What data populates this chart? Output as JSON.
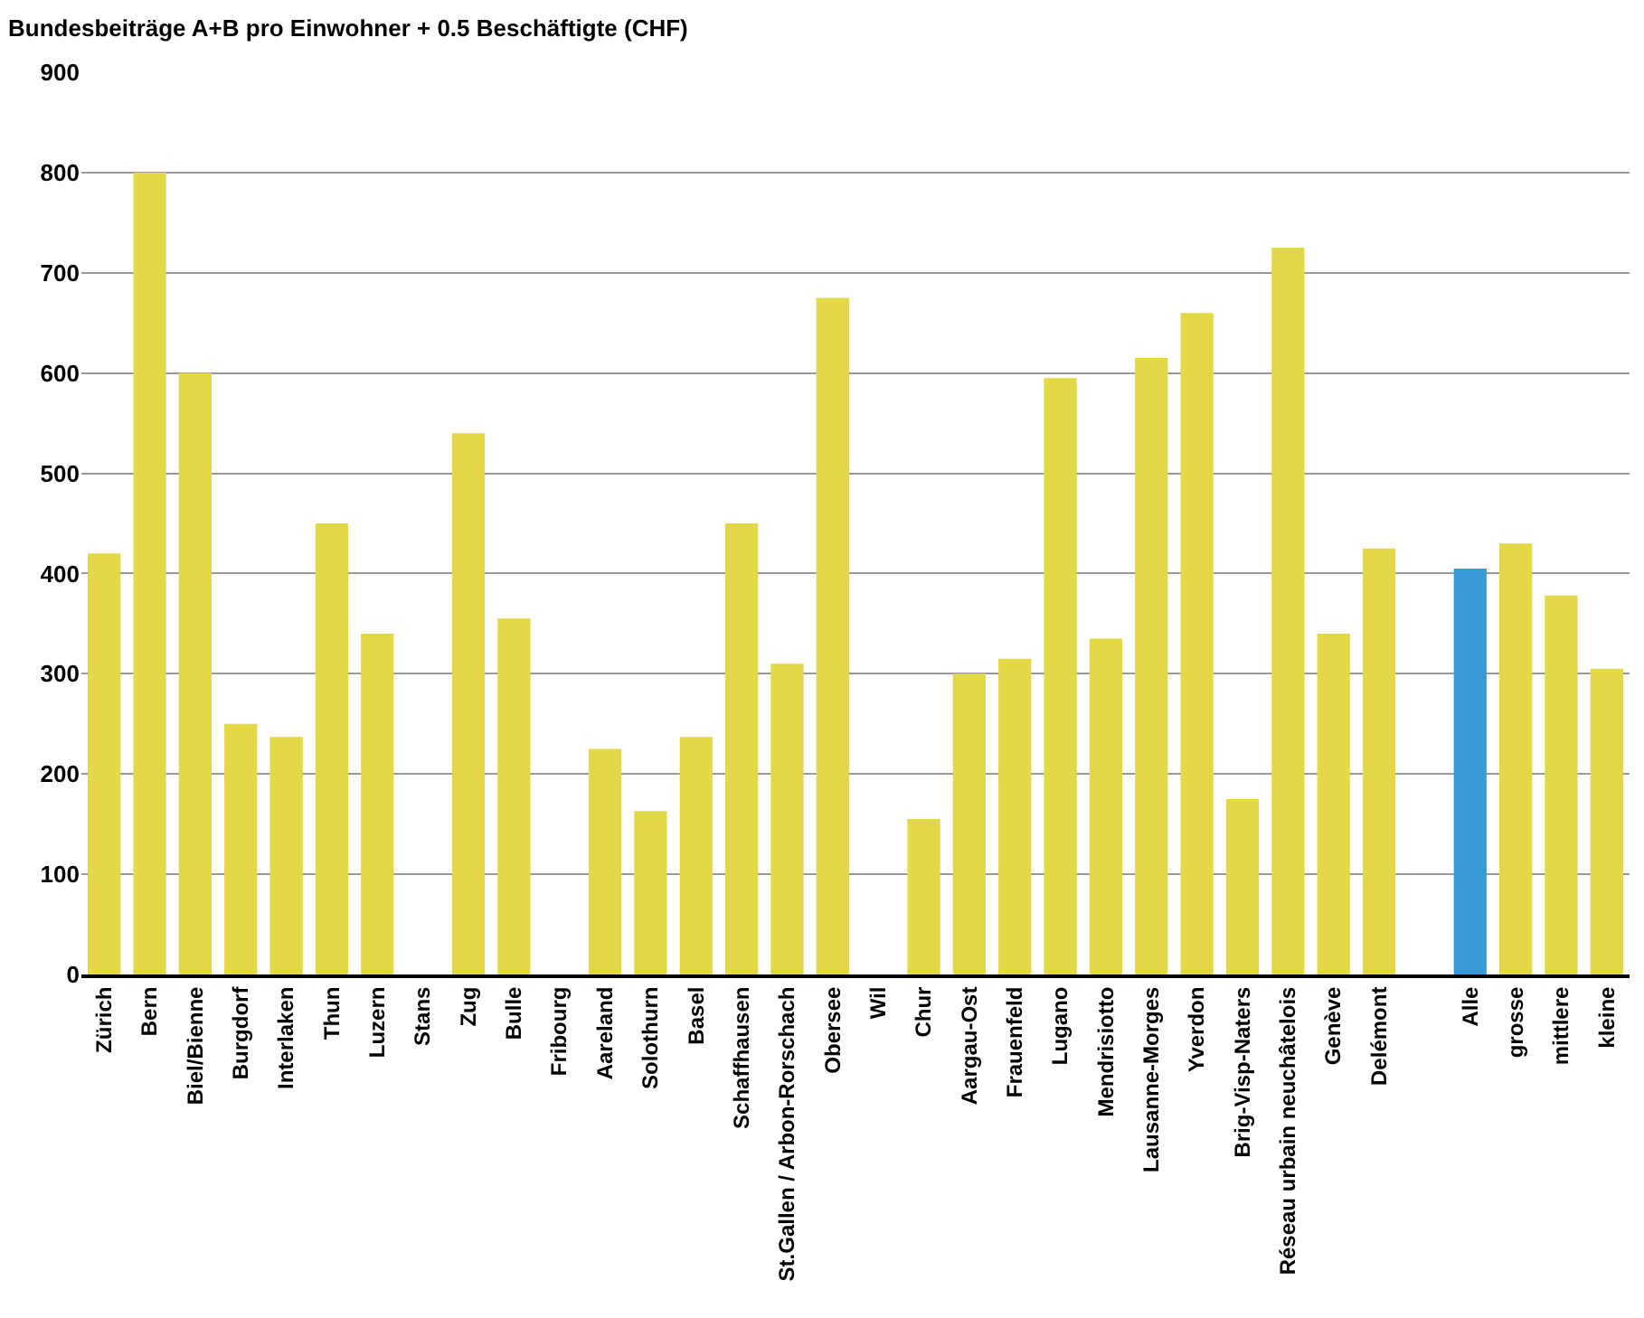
{
  "chart_data": {
    "type": "bar",
    "title": "Bundesbeiträge A+B pro Einwohner + 0.5 Beschäftigte (CHF)",
    "categories": [
      "Zürich",
      "Bern",
      "Biel/Bienne",
      "Burgdorf",
      "Interlaken",
      "Thun",
      "Luzern",
      "Stans",
      "Zug",
      "Bulle",
      "Fribourg",
      "Aareland",
      "Solothurn",
      "Basel",
      "Schaffhausen",
      "St.Gallen / Arbon-Rorschach",
      "Obersee",
      "Wil",
      "Chur",
      "Aargau-Ost",
      "Frauenfeld",
      "Lugano",
      "Mendrisiotto",
      "Lausanne-Morges",
      "Yverdon",
      "Brig-Visp-Naters",
      "Réseau urbain neuchâtelois",
      "Genève",
      "Delémont",
      null,
      "Alle",
      "grosse",
      "mittlere",
      "kleine"
    ],
    "values": [
      420,
      800,
      600,
      250,
      237,
      450,
      340,
      null,
      540,
      355,
      null,
      225,
      163,
      237,
      450,
      310,
      675,
      null,
      155,
      300,
      315,
      595,
      335,
      615,
      660,
      175,
      725,
      340,
      425,
      null,
      405,
      430,
      378,
      305
    ],
    "colors": [
      "#e3d845",
      "#e3d845",
      "#e3d845",
      "#e3d845",
      "#e3d845",
      "#e3d845",
      "#e3d845",
      "#e3d845",
      "#e3d845",
      "#e3d845",
      "#e3d845",
      "#e3d845",
      "#e3d845",
      "#e3d845",
      "#e3d845",
      "#e3d845",
      "#e3d845",
      "#e3d845",
      "#e3d845",
      "#e3d845",
      "#e3d845",
      "#e3d845",
      "#e3d845",
      "#e3d845",
      "#e3d845",
      "#e3d845",
      "#e3d845",
      "#e3d845",
      "#e3d845",
      "#e3d845",
      "#3a9ad9",
      "#e3d845",
      "#e3d845",
      "#e3d845"
    ],
    "ylim": [
      0,
      900
    ],
    "yticks": [
      0,
      100,
      200,
      300,
      400,
      500,
      600,
      700,
      800,
      900
    ],
    "grid": "y"
  }
}
